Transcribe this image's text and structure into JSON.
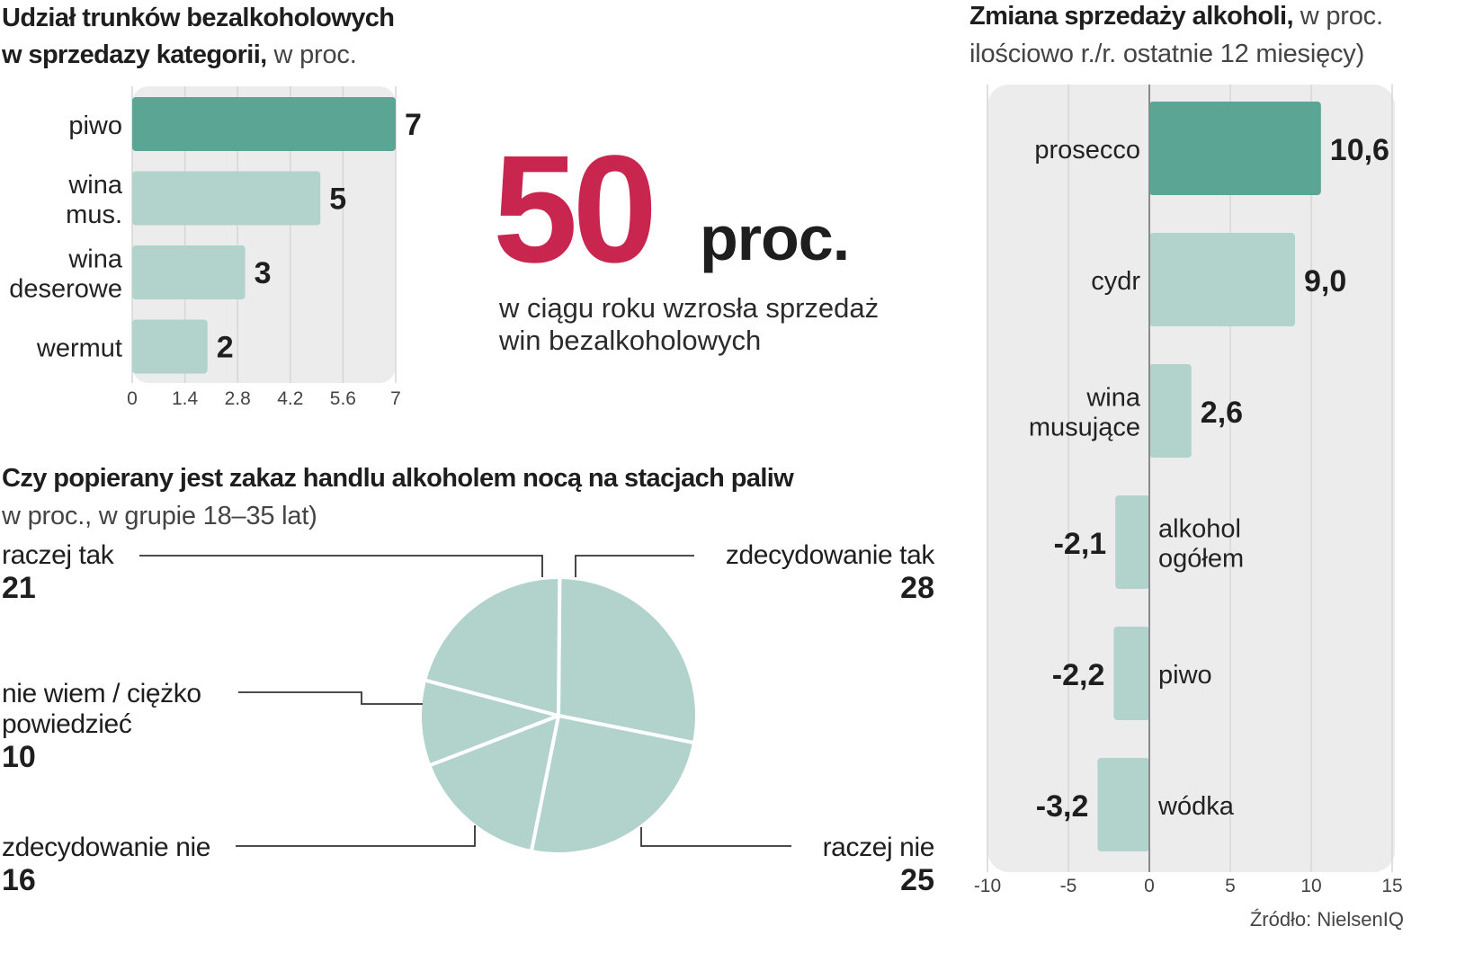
{
  "colors": {
    "accent_dark": "#5aa593",
    "accent_light": "#b1d3cb",
    "panel_bg": "#ececec",
    "highlight_red": "#c8254f",
    "text": "#1e1e1e"
  },
  "chart_left": {
    "title_bold_1": "Udział trunków bezalkoholowych",
    "title_bold_2": "w sprzedazy kategorii,",
    "title_light": " w proc.",
    "categories": [
      [
        "piwo"
      ],
      [
        "wina",
        "mus."
      ],
      [
        "wina",
        "deserowe"
      ],
      [
        "wermut"
      ]
    ],
    "value_labels": [
      "7",
      "5",
      "3",
      "2"
    ],
    "tick_labels": [
      "0",
      "1.4",
      "2.8",
      "4.2",
      "5.6",
      "7"
    ]
  },
  "stat": {
    "value": "50",
    "unit": "proc.",
    "line1": "w ciągu roku wzrosła sprzedaż",
    "line2": "win bezalkoholowych"
  },
  "chart_right": {
    "title_bold": "Zmiana sprzedaży alkoholi,",
    "title_light": " w proc.",
    "subtitle": "ilościowo r./r. ostatnie 12 miesięcy)",
    "categories": [
      [
        "prosecco"
      ],
      [
        "cydr"
      ],
      [
        "wina",
        "musujące"
      ],
      [
        "alkohol",
        "ogółem"
      ],
      [
        "piwo"
      ],
      [
        "wódka"
      ]
    ],
    "value_labels": [
      "10,6",
      "9,0",
      "2,6",
      "-2,1",
      "-2,2",
      "-3,2"
    ],
    "tick_labels": [
      "-10",
      "-5",
      "0",
      "5",
      "10",
      "15"
    ]
  },
  "chart_pie": {
    "title": "Czy popierany jest zakaz handlu alkoholem nocą na stacjach paliw",
    "subtitle": "w proc., w grupie 18–35 lat)",
    "slices": [
      {
        "label": [
          "zdecydowanie tak"
        ],
        "value_label": "28"
      },
      {
        "label": [
          "raczej nie"
        ],
        "value_label": "25"
      },
      {
        "label": [
          "zdecydowanie nie"
        ],
        "value_label": "16"
      },
      {
        "label": [
          "nie wiem / ciężko",
          "powiedzieć"
        ],
        "value_label": "10"
      },
      {
        "label": [
          "raczej tak"
        ],
        "value_label": "21"
      }
    ]
  },
  "source": "Źródło: NielsenIQ",
  "chart_data": [
    {
      "type": "bar",
      "orientation": "horizontal",
      "title": "Udział trunków bezalkoholowych w sprzedazy kategorii, w proc.",
      "categories": [
        "piwo",
        "wina mus.",
        "wina deserowe",
        "wermut"
      ],
      "values": [
        7,
        5,
        3,
        2
      ],
      "xlim": [
        0,
        7
      ],
      "xticks": [
        0,
        1.4,
        2.8,
        4.2,
        5.6,
        7
      ],
      "grid": true,
      "highlight": "piwo"
    },
    {
      "type": "bar",
      "orientation": "horizontal",
      "title": "Zmiana sprzedaży alkoholi, w proc.",
      "subtitle": "ilościowo r./r. ostatnie 12 miesięcy)",
      "categories": [
        "prosecco",
        "cydr",
        "wina musujące",
        "alkohol ogółem",
        "piwo",
        "wódka"
      ],
      "values": [
        10.6,
        9.0,
        2.6,
        -2.1,
        -2.2,
        -3.2
      ],
      "xlim": [
        -10,
        15
      ],
      "xticks": [
        -10,
        -5,
        0,
        5,
        10,
        15
      ],
      "grid": true,
      "highlight": "prosecco"
    },
    {
      "type": "pie",
      "title": "Czy popierany jest zakaz handlu alkoholem nocą na stacjach paliw",
      "subtitle": "w proc., w grupie 18–35 lat)",
      "labels": [
        "zdecydowanie tak",
        "raczej nie",
        "zdecydowanie nie",
        "nie wiem / ciężko powiedzieć",
        "raczej tak"
      ],
      "values": [
        28,
        25,
        16,
        10,
        21
      ]
    }
  ]
}
